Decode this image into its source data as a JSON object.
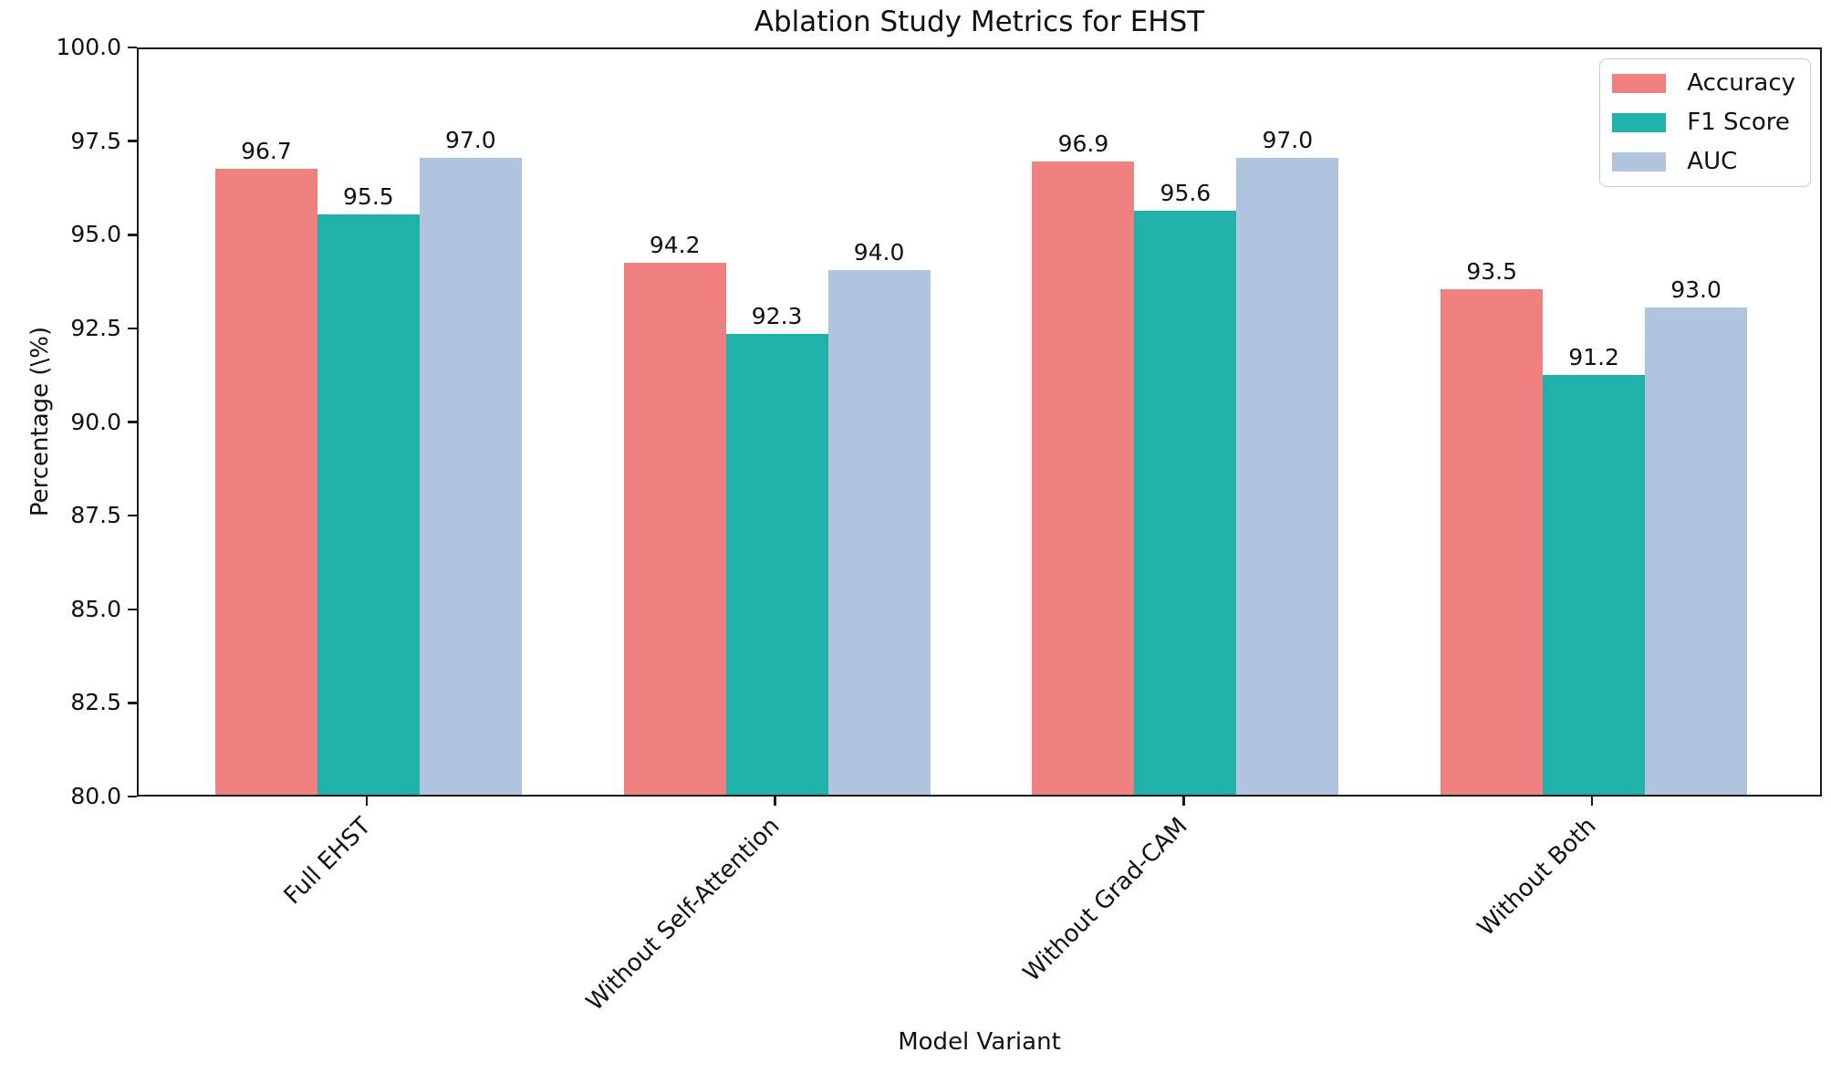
{
  "chart_data": {
    "type": "bar",
    "title": "Ablation Study Metrics for EHST",
    "xlabel": "Model Variant",
    "ylabel": "Percentage (\\%)",
    "categories": [
      "Full EHST",
      "Without Self-Attention",
      "Without Grad-CAM",
      "Without Both"
    ],
    "series": [
      {
        "name": "Accuracy",
        "color": "#F08080",
        "values": [
          96.7,
          94.2,
          96.9,
          93.5
        ]
      },
      {
        "name": "F1 Score",
        "color": "#20B2AA",
        "values": [
          95.5,
          92.3,
          95.6,
          91.2
        ]
      },
      {
        "name": "AUC",
        "color": "#B0C4DE",
        "values": [
          97.0,
          94.0,
          97.0,
          93.0
        ]
      }
    ],
    "ylim": [
      80.0,
      100.0
    ],
    "yticks": [
      80.0,
      82.5,
      85.0,
      87.5,
      90.0,
      92.5,
      95.0,
      97.5,
      100.0
    ],
    "grid": false,
    "value_labels": true,
    "legend_position": "upper right",
    "xtick_rotation_deg": 45,
    "text_color": "#111111",
    "spine_color": "#1a1a1a",
    "background_color": "#ffffff"
  }
}
